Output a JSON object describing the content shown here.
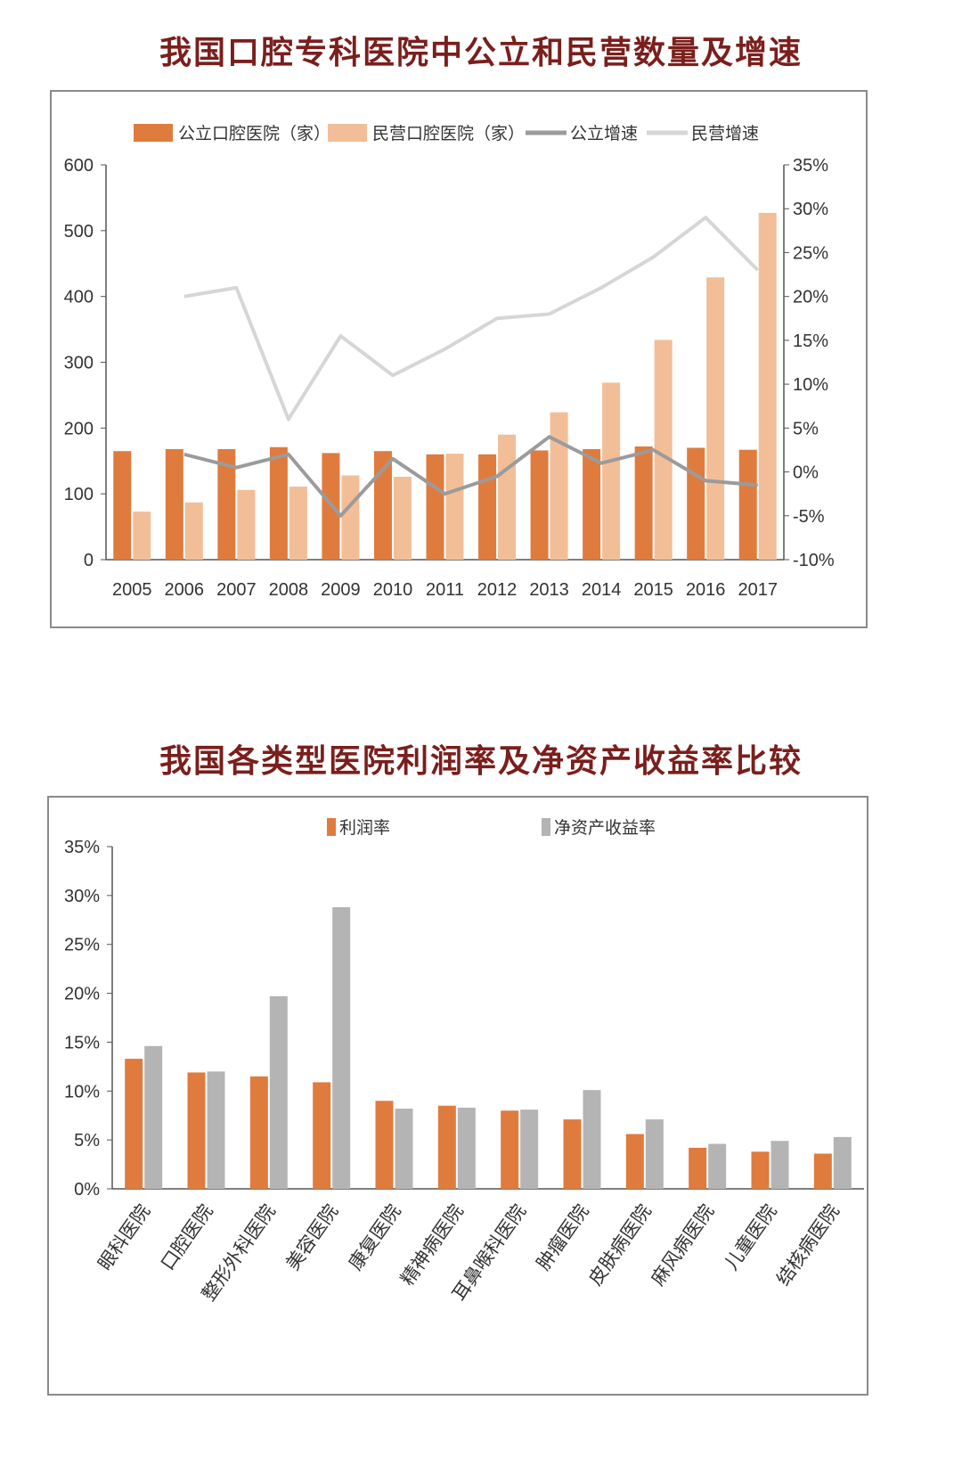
{
  "colors": {
    "title": "#7a1f1c",
    "public_bar": "#E07B3E",
    "private_bar": "#F2BE98",
    "public_line": "#9B9B9B",
    "private_line": "#D6D6D6",
    "profit_bar": "#E07B3E",
    "roe_bar": "#B4B4B4"
  },
  "chart1": {
    "heading": "我国口腔专科医院中公立和民营数量及增速",
    "chart_data": {
      "type": "bar",
      "categories": [
        "2005",
        "2006",
        "2007",
        "2008",
        "2009",
        "2010",
        "2011",
        "2012",
        "2013",
        "2014",
        "2015",
        "2016",
        "2017"
      ],
      "series": [
        {
          "name": "公立口腔医院（家）",
          "type": "bar",
          "axis": "left",
          "values": [
            165,
            168,
            168,
            171,
            162,
            165,
            160,
            160,
            166,
            168,
            172,
            170,
            167
          ]
        },
        {
          "name": "民营口腔医院（家）",
          "type": "bar",
          "axis": "left",
          "values": [
            73,
            87,
            106,
            111,
            128,
            126,
            161,
            190,
            224,
            269,
            334,
            429,
            527
          ]
        },
        {
          "name": "公立增速",
          "type": "line",
          "axis": "right",
          "values": [
            null,
            2,
            0.5,
            2,
            -5,
            1.5,
            -2.5,
            -0.5,
            4,
            1,
            2.5,
            -1,
            -1.5
          ]
        },
        {
          "name": "民营增速",
          "type": "line",
          "axis": "right",
          "values": [
            null,
            20,
            21,
            6,
            15.5,
            11,
            14,
            17.5,
            18,
            21,
            24.5,
            29,
            23
          ]
        }
      ],
      "left_axis": {
        "ylim": [
          0,
          600
        ],
        "ticks": [
          "0",
          "100",
          "200",
          "300",
          "400",
          "500",
          "600"
        ]
      },
      "right_axis": {
        "ylim": [
          -10,
          35
        ],
        "ticks": [
          "-10%",
          "-5%",
          "0%",
          "5%",
          "10%",
          "15%",
          "20%",
          "25%",
          "30%",
          "35%"
        ]
      },
      "legend": "top",
      "grid": false
    }
  },
  "chart2": {
    "heading": "我国各类型医院利润率及净资产收益率比较",
    "chart_data": {
      "type": "bar",
      "categories": [
        "眼科医院",
        "口腔医院",
        "整形外科医院",
        "美容医院",
        "康复医院",
        "精神病医院",
        "耳鼻喉科医院",
        "肿瘤医院",
        "皮肤病医院",
        "麻风病医院",
        "儿童医院",
        "结核病医院"
      ],
      "series": [
        {
          "name": "利润率",
          "values": [
            13.3,
            11.9,
            11.5,
            10.9,
            9.0,
            8.5,
            8.0,
            7.1,
            5.6,
            4.2,
            3.8,
            3.6
          ]
        },
        {
          "name": "净资产收益率",
          "values": [
            14.6,
            12.0,
            19.7,
            28.8,
            8.2,
            8.3,
            8.1,
            10.1,
            7.1,
            4.6,
            4.9,
            5.3
          ]
        }
      ],
      "ylim": [
        0,
        35
      ],
      "ticks": [
        "0%",
        "5%",
        "10%",
        "15%",
        "20%",
        "25%",
        "30%",
        "35%"
      ],
      "legend": "top",
      "grid": false
    }
  }
}
